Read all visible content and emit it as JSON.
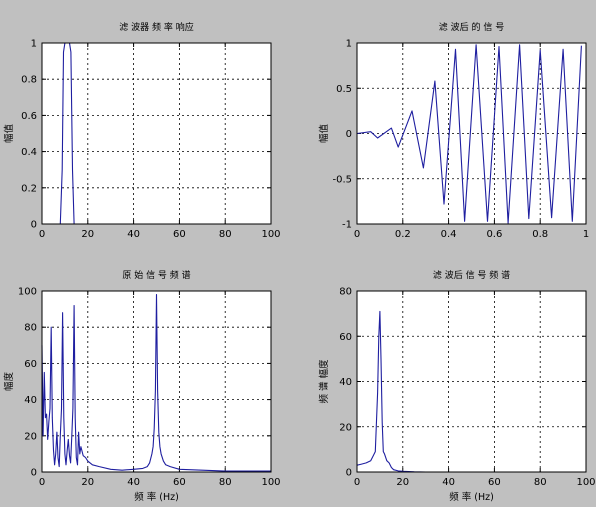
{
  "figure": {
    "background": "#c0c0c0",
    "axes_background": "#ffffff",
    "line_color": "#1f1fa0",
    "grid": "dotted"
  },
  "chart_data": [
    {
      "id": "filter-response",
      "type": "line",
      "title": "滤 波器 频 率 响应",
      "xlabel": "",
      "ylabel": "幅值",
      "xlim": [
        0,
        100
      ],
      "ylim": [
        0,
        1
      ],
      "xticks": [
        "0",
        "20",
        "40",
        "60",
        "80",
        "100"
      ],
      "yticks": [
        "0",
        "0.2",
        "0.4",
        "0.6",
        "0.8",
        "1"
      ],
      "x": [
        0,
        8,
        8.8,
        9.4,
        10,
        12,
        12.6,
        13.3,
        14,
        100
      ],
      "y": [
        0,
        0,
        0.3,
        0.95,
        1,
        1,
        0.95,
        0.3,
        0,
        0
      ],
      "grid": true
    },
    {
      "id": "filtered-signal",
      "type": "line",
      "title": "滤 波后 的 信 号",
      "xlabel": "",
      "ylabel": "幅值",
      "xlim": [
        0,
        1
      ],
      "ylim": [
        -1,
        1
      ],
      "xticks": [
        "0",
        "0.2",
        "0.4",
        "0.6",
        "0.8",
        "1"
      ],
      "yticks": [
        "-1",
        "-0.5",
        "0",
        "0.5",
        "1"
      ],
      "x": [
        0,
        0.06,
        0.09,
        0.15,
        0.18,
        0.24,
        0.29,
        0.34,
        0.38,
        0.43,
        0.47,
        0.52,
        0.57,
        0.62,
        0.66,
        0.71,
        0.75,
        0.8,
        0.85,
        0.9,
        0.94,
        0.98
      ],
      "y": [
        0,
        0.02,
        -0.05,
        0.06,
        -0.15,
        0.25,
        -0.38,
        0.58,
        -0.78,
        0.93,
        -0.97,
        0.98,
        -0.97,
        0.96,
        -0.99,
        0.98,
        -0.94,
        0.92,
        -0.93,
        0.93,
        -0.97,
        0.97
      ],
      "grid": true
    },
    {
      "id": "original-spectrum",
      "type": "line",
      "title": "原 始 信 号 频 谱",
      "xlabel": "频 率 (Hz)",
      "ylabel": "幅度",
      "xlim": [
        0,
        100
      ],
      "ylim": [
        0,
        100
      ],
      "xticks": [
        "0",
        "20",
        "40",
        "60",
        "80",
        "100"
      ],
      "yticks": [
        "0",
        "20",
        "40",
        "60",
        "80",
        "100"
      ],
      "x": [
        0,
        0.5,
        1,
        1.5,
        2,
        2.5,
        3,
        3.5,
        4,
        4.5,
        5,
        5.5,
        6,
        6.5,
        7,
        7.5,
        8,
        8.5,
        9,
        9.5,
        10,
        10.5,
        11,
        11.5,
        12,
        12.5,
        13,
        13.5,
        14,
        14.5,
        15,
        15.5,
        16,
        16.5,
        17,
        18,
        19,
        20,
        22,
        25,
        30,
        35,
        40,
        44,
        46,
        47,
        48,
        48.5,
        49,
        49.5,
        50,
        50.5,
        51,
        51.5,
        52,
        53,
        54,
        56,
        60,
        70,
        80,
        90,
        100
      ],
      "y": [
        70,
        20,
        55,
        30,
        32,
        18,
        28,
        35,
        80,
        30,
        12,
        4,
        10,
        22,
        8,
        3,
        20,
        35,
        88,
        30,
        10,
        4,
        12,
        18,
        9,
        5,
        20,
        35,
        92,
        30,
        8,
        4,
        22,
        10,
        14,
        9,
        8,
        6,
        4,
        3,
        1.5,
        1,
        1.5,
        2,
        3,
        5,
        10,
        14,
        24,
        45,
        98,
        45,
        22,
        14,
        10,
        6,
        4,
        3,
        1.5,
        1,
        0.5,
        0.5,
        0.5
      ],
      "grid": true
    },
    {
      "id": "filtered-spectrum",
      "type": "line",
      "title": "滤 波后 信 号 频 谱",
      "xlabel": "频 率 (Hz)",
      "ylabel": "频 谱 幅度",
      "xlim": [
        0,
        100
      ],
      "ylim": [
        0,
        80
      ],
      "xticks": [
        "0",
        "20",
        "40",
        "60",
        "80",
        "100"
      ],
      "yticks": [
        "0",
        "20",
        "40",
        "60",
        "80"
      ],
      "x": [
        0,
        2,
        4,
        6,
        7,
        8,
        9,
        9.5,
        10,
        10.5,
        11,
        11.5,
        12,
        13,
        14,
        15,
        16,
        18,
        20,
        25,
        30,
        100
      ],
      "y": [
        3,
        3.5,
        4,
        5,
        7,
        9,
        35,
        60,
        71,
        50,
        22,
        9,
        8,
        5,
        4,
        2,
        1,
        0.5,
        0.3,
        0.1,
        0,
        0
      ],
      "grid": true
    }
  ]
}
